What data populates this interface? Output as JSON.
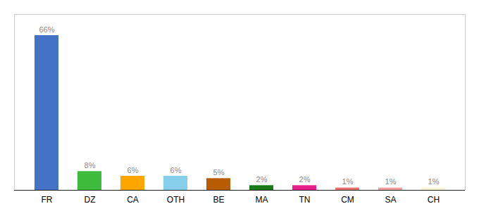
{
  "chart_data": {
    "type": "bar",
    "categories": [
      "FR",
      "DZ",
      "CA",
      "OTH",
      "BE",
      "MA",
      "TN",
      "CM",
      "SA",
      "CH"
    ],
    "values": [
      66,
      8,
      6,
      6,
      5,
      2,
      2,
      1,
      1,
      1
    ],
    "value_labels": [
      "66%",
      "8%",
      "6%",
      "6%",
      "5%",
      "2%",
      "2%",
      "1%",
      "1%",
      "1%"
    ],
    "colors": [
      "#4472c4",
      "#3dbb3d",
      "#ffa500",
      "#87ceeb",
      "#b85c00",
      "#1a7a1a",
      "#e91e8c",
      "#e87070",
      "#f0a0a0",
      "#f5f5d5"
    ],
    "ylim": [
      0,
      75
    ],
    "data_labels": true,
    "tick_labels": "x",
    "grid": false
  }
}
